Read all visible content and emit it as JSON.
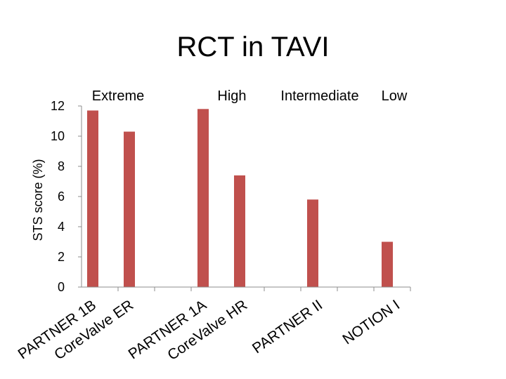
{
  "chart_data": {
    "type": "bar",
    "title": "RCT in TAVI",
    "xlabel": "",
    "ylabel": "STS score (%)",
    "ylim": [
      0,
      12
    ],
    "yticks": [
      0,
      2,
      4,
      6,
      8,
      10,
      12
    ],
    "bar_color": "#c0504d",
    "categories": [
      "PARTNER 1B",
      "CoreValve ER",
      "PARTNER 1A",
      "CoreValve HR",
      "PARTNER II",
      "NOTION I"
    ],
    "values": [
      11.7,
      10.3,
      11.8,
      7.4,
      5.8,
      3.0
    ],
    "groups": [
      "Extreme",
      "High",
      "Intermediate",
      "Low"
    ]
  }
}
